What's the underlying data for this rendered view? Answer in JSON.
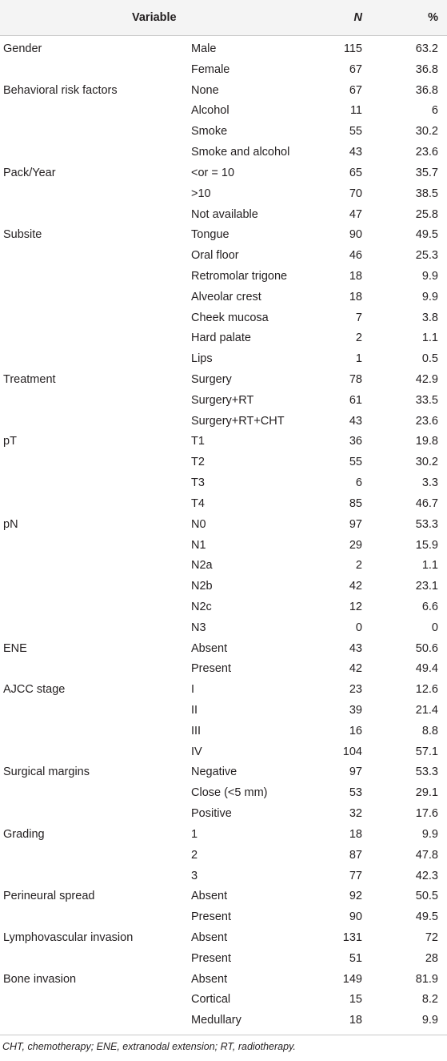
{
  "table": {
    "headers": {
      "variable": "Variable",
      "n": "N",
      "pct": "%"
    },
    "rows": [
      {
        "variable": "Gender",
        "category": "Male",
        "n": "115",
        "pct": "63.2"
      },
      {
        "variable": "",
        "category": "Female",
        "n": "67",
        "pct": "36.8"
      },
      {
        "variable": "Behavioral risk factors",
        "category": "None",
        "n": "67",
        "pct": "36.8"
      },
      {
        "variable": "",
        "category": "Alcohol",
        "n": "11",
        "pct": "6"
      },
      {
        "variable": "",
        "category": "Smoke",
        "n": "55",
        "pct": "30.2"
      },
      {
        "variable": "",
        "category": "Smoke and alcohol",
        "n": "43",
        "pct": "23.6"
      },
      {
        "variable": "Pack/Year",
        "category": "<or = 10",
        "n": "65",
        "pct": "35.7"
      },
      {
        "variable": "",
        "category": ">10",
        "n": "70",
        "pct": "38.5"
      },
      {
        "variable": "",
        "category": "Not available",
        "n": "47",
        "pct": "25.8"
      },
      {
        "variable": "Subsite",
        "category": "Tongue",
        "n": "90",
        "pct": "49.5"
      },
      {
        "variable": "",
        "category": "Oral floor",
        "n": "46",
        "pct": "25.3"
      },
      {
        "variable": "",
        "category": "Retromolar trigone",
        "n": "18",
        "pct": "9.9"
      },
      {
        "variable": "",
        "category": "Alveolar crest",
        "n": "18",
        "pct": "9.9"
      },
      {
        "variable": "",
        "category": "Cheek mucosa",
        "n": "7",
        "pct": "3.8"
      },
      {
        "variable": "",
        "category": "Hard palate",
        "n": "2",
        "pct": "1.1"
      },
      {
        "variable": "",
        "category": "Lips",
        "n": "1",
        "pct": "0.5"
      },
      {
        "variable": "Treatment",
        "category": "Surgery",
        "n": "78",
        "pct": "42.9"
      },
      {
        "variable": "",
        "category": "Surgery+RT",
        "n": "61",
        "pct": "33.5"
      },
      {
        "variable": "",
        "category": "Surgery+RT+CHT",
        "n": "43",
        "pct": "23.6"
      },
      {
        "variable": "pT",
        "category": "T1",
        "n": "36",
        "pct": "19.8"
      },
      {
        "variable": "",
        "category": "T2",
        "n": "55",
        "pct": "30.2"
      },
      {
        "variable": "",
        "category": "T3",
        "n": "6",
        "pct": "3.3"
      },
      {
        "variable": "",
        "category": "T4",
        "n": "85",
        "pct": "46.7"
      },
      {
        "variable": "pN",
        "category": "N0",
        "n": "97",
        "pct": "53.3"
      },
      {
        "variable": "",
        "category": "N1",
        "n": "29",
        "pct": "15.9"
      },
      {
        "variable": "",
        "category": "N2a",
        "n": "2",
        "pct": "1.1"
      },
      {
        "variable": "",
        "category": "N2b",
        "n": "42",
        "pct": "23.1"
      },
      {
        "variable": "",
        "category": "N2c",
        "n": "12",
        "pct": "6.6"
      },
      {
        "variable": "",
        "category": "N3",
        "n": "0",
        "pct": "0"
      },
      {
        "variable": "ENE",
        "category": "Absent",
        "n": "43",
        "pct": "50.6"
      },
      {
        "variable": "",
        "category": "Present",
        "n": "42",
        "pct": "49.4"
      },
      {
        "variable": "AJCC stage",
        "category": "I",
        "n": "23",
        "pct": "12.6"
      },
      {
        "variable": "",
        "category": "II",
        "n": "39",
        "pct": "21.4"
      },
      {
        "variable": "",
        "category": "III",
        "n": "16",
        "pct": "8.8"
      },
      {
        "variable": "",
        "category": "IV",
        "n": "104",
        "pct": "57.1"
      },
      {
        "variable": "Surgical margins",
        "category": "Negative",
        "n": "97",
        "pct": "53.3"
      },
      {
        "variable": "",
        "category": "Close (<5 mm)",
        "n": "53",
        "pct": "29.1"
      },
      {
        "variable": "",
        "category": "Positive",
        "n": "32",
        "pct": "17.6"
      },
      {
        "variable": "Grading",
        "category": "1",
        "n": "18",
        "pct": "9.9"
      },
      {
        "variable": "",
        "category": "2",
        "n": "87",
        "pct": "47.8"
      },
      {
        "variable": "",
        "category": "3",
        "n": "77",
        "pct": "42.3"
      },
      {
        "variable": "Perineural spread",
        "category": "Absent",
        "n": "92",
        "pct": "50.5"
      },
      {
        "variable": "",
        "category": "Present",
        "n": "90",
        "pct": "49.5"
      },
      {
        "variable": "Lymphovascular invasion",
        "category": "Absent",
        "n": "131",
        "pct": "72"
      },
      {
        "variable": "",
        "category": "Present",
        "n": "51",
        "pct": "28"
      },
      {
        "variable": "Bone invasion",
        "category": "Absent",
        "n": "149",
        "pct": "81.9"
      },
      {
        "variable": "",
        "category": "Cortical",
        "n": "15",
        "pct": "8.2"
      },
      {
        "variable": "",
        "category": "Medullary",
        "n": "18",
        "pct": "9.9"
      }
    ]
  },
  "footnote": "CHT, chemotherapy; ENE, extranodal extension; RT, radiotherapy.",
  "colors": {
    "header_bg": "#f4f4f4",
    "rule": "#c8c8c8",
    "text": "#231f20"
  }
}
